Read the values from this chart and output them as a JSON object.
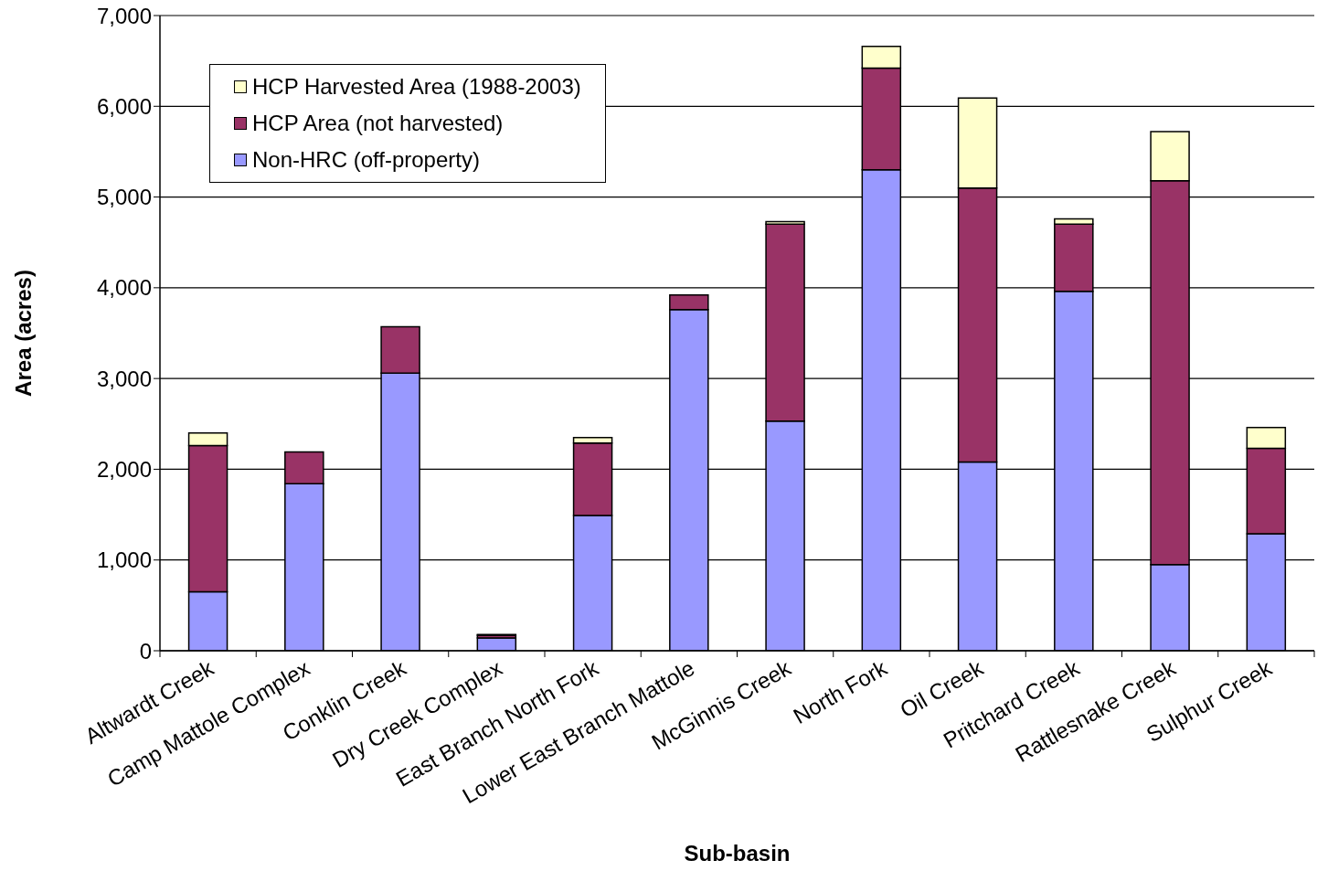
{
  "chart_data": {
    "type": "bar",
    "stacked": true,
    "xlabel": "Sub-basin",
    "ylabel": "Area (acres)",
    "categories": [
      "Altwardt Creek",
      "Camp Mattole Complex",
      "Conklin Creek",
      "Dry Creek Complex",
      "East Branch North Fork",
      "Lower East Branch Mattole",
      "McGinnis Creek",
      "North Fork",
      "Oil Creek",
      "Pritchard Creek",
      "Rattlesnake Creek",
      "Sulphur Creek"
    ],
    "series": [
      {
        "name": "Non-HRC (off-property)",
        "color": "#9999ff",
        "values": [
          650,
          1840,
          3060,
          140,
          1490,
          3760,
          2530,
          5300,
          2080,
          3960,
          950,
          1290
        ]
      },
      {
        "name": "HCP Area (not harvested)",
        "color": "#993366",
        "values": [
          1610,
          350,
          510,
          30,
          800,
          160,
          2170,
          1120,
          3020,
          740,
          4230,
          940
        ]
      },
      {
        "name": "HCP Harvested Area (1988-2003)",
        "color": "#ffffcc",
        "values": [
          140,
          0,
          0,
          10,
          60,
          0,
          30,
          240,
          990,
          60,
          540,
          230
        ]
      }
    ],
    "ylim": [
      0,
      7000
    ],
    "yticks": [
      0,
      {
        "value": 1000,
        "label": "1,000"
      },
      {
        "value": 2000,
        "label": "2,000"
      },
      {
        "value": 3000,
        "label": "3,000"
      },
      {
        "value": 4000,
        "label": "4,000"
      },
      {
        "value": 5000,
        "label": "5,000"
      },
      {
        "value": 6000,
        "label": "6,000"
      },
      {
        "value": 7000,
        "label": "7,000"
      }
    ],
    "grid": "y",
    "legend": "top left"
  }
}
